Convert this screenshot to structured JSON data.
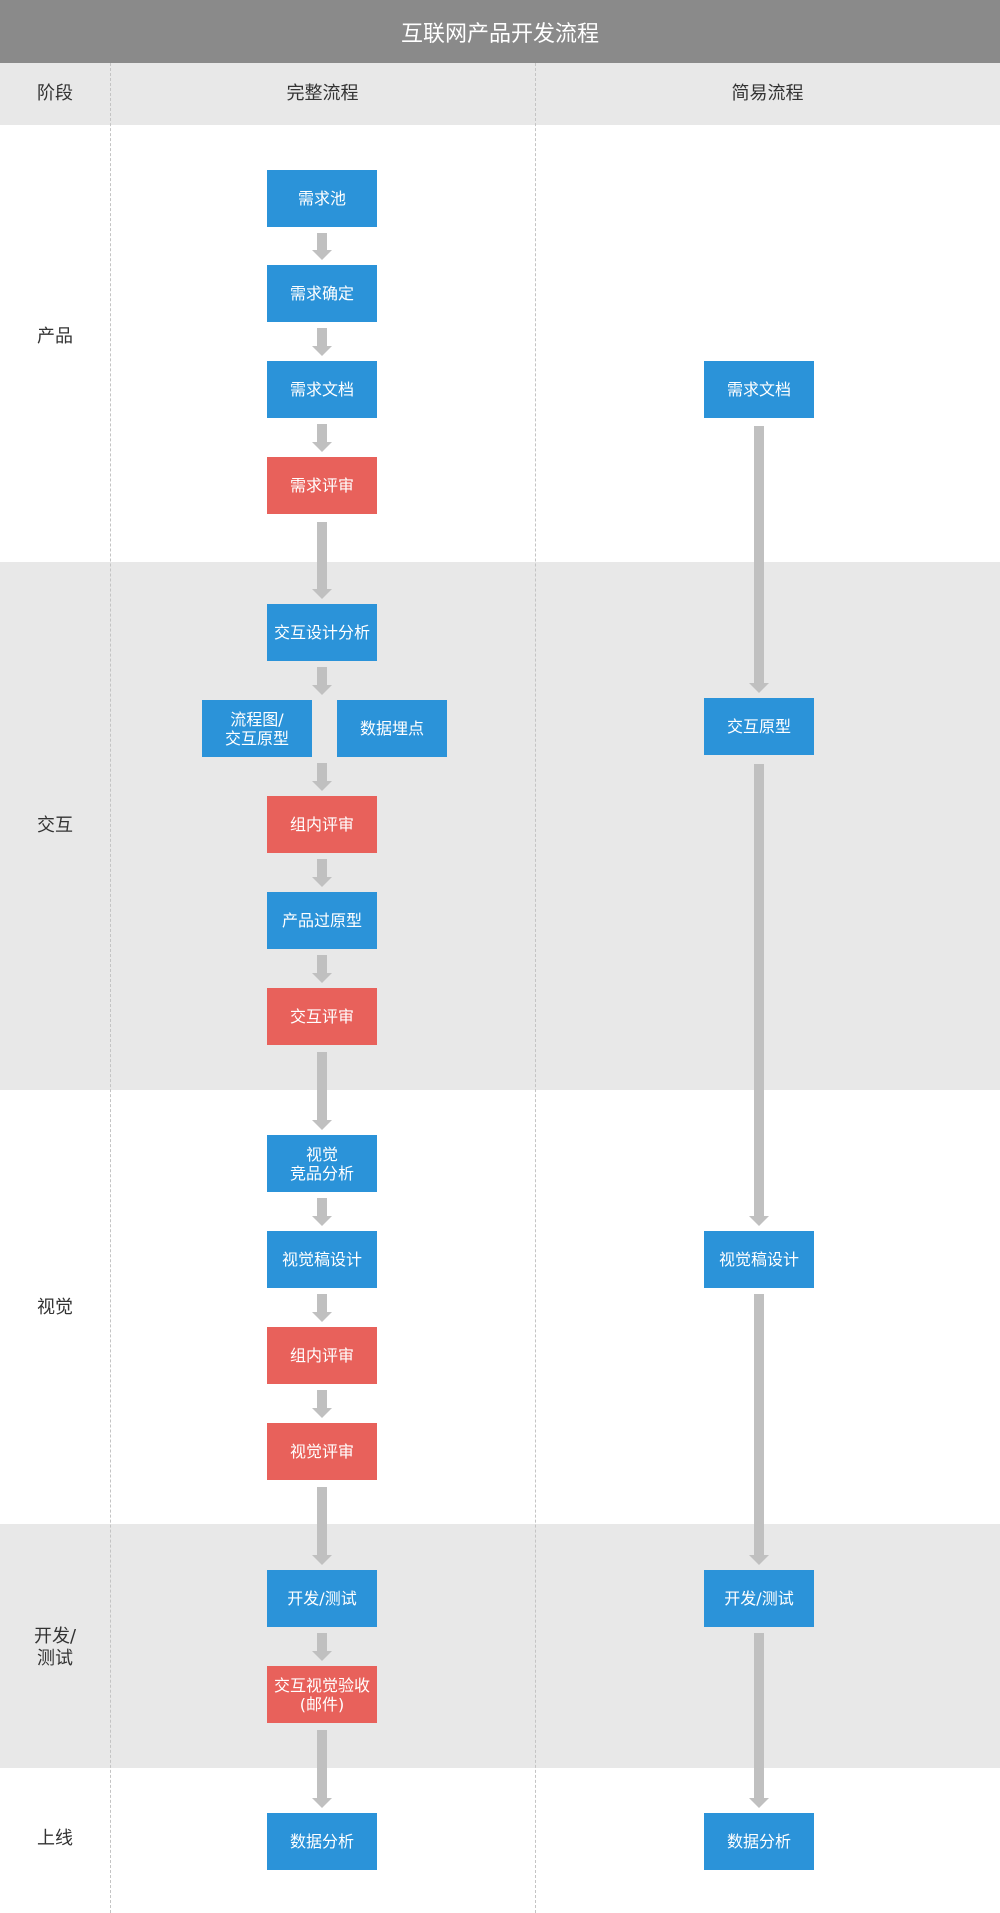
{
  "title": "互联网产品开发流程",
  "header": {
    "stage": "阶段",
    "full": "完整流程",
    "simple": "简易流程"
  },
  "stages": {
    "product": "产品",
    "interaction": "交互",
    "visual": "视觉",
    "dev": [
      "开发/",
      "测试"
    ],
    "launch": "上线"
  },
  "full_flow": {
    "req_pool": "需求池",
    "req_confirm": "需求确定",
    "req_doc": "需求文档",
    "req_review": "需求评审",
    "ix_analysis": "交互设计分析",
    "flowchart": [
      "流程图/",
      "交互原型"
    ],
    "tracking": "数据埋点",
    "ix_group_review": "组内评审",
    "product_prototype": "产品过原型",
    "ix_review": "交互评审",
    "visual_competitor": [
      "视觉",
      "竞品分析"
    ],
    "visual_design": "视觉稿设计",
    "visual_group_review": "组内评审",
    "visual_review": "视觉评审",
    "dev_test": "开发/测试",
    "acceptance": [
      "交互视觉验收",
      "(邮件)"
    ],
    "data_analysis": "数据分析"
  },
  "simple_flow": {
    "req_doc": "需求文档",
    "prototype": "交互原型",
    "visual_design": "视觉稿设计",
    "dev_test": "开发/测试",
    "data_analysis": "数据分析"
  },
  "colors": {
    "title_bg": "#8a8a8a",
    "band_grey": "#e8e8e8",
    "blue": "#2b93d9",
    "red": "#e8615b",
    "arrow": "#c0c0c0"
  }
}
